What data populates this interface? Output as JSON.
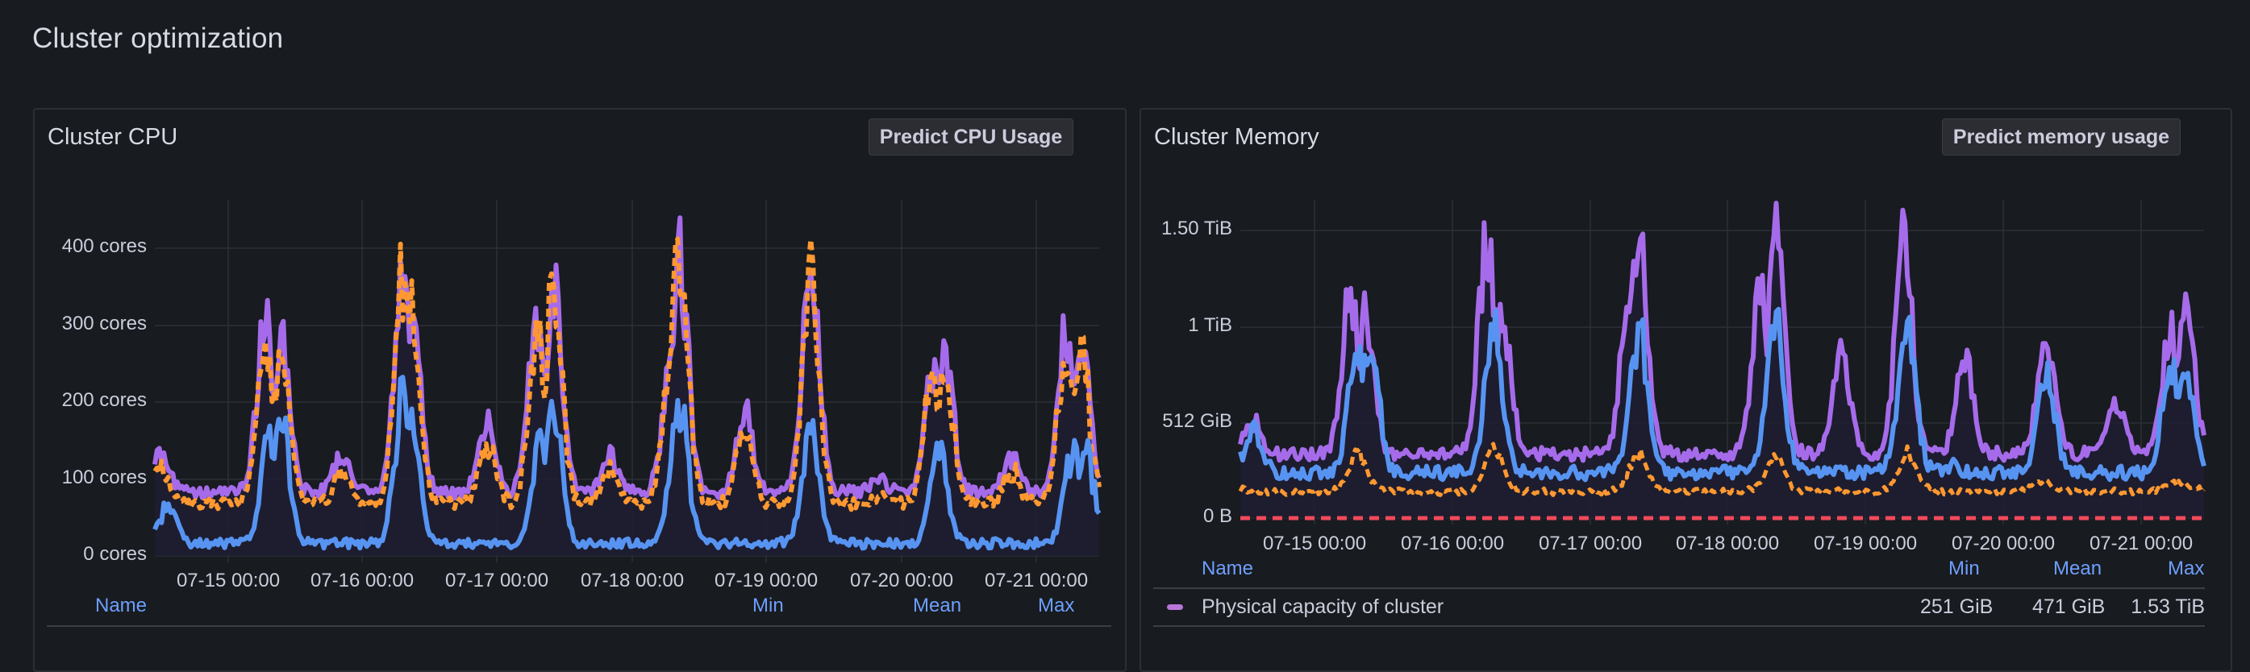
{
  "page": {
    "title": "Cluster optimization"
  },
  "panels": {
    "cpu": {
      "title": "Cluster CPU",
      "button_label": "Predict CPU Usage",
      "y_ticks": [
        "400 cores",
        "300 cores",
        "200 cores",
        "100 cores",
        "0 cores"
      ],
      "x_ticks": [
        "07-15 00:00",
        "07-16 00:00",
        "07-17 00:00",
        "07-18 00:00",
        "07-19 00:00",
        "07-20 00:00",
        "07-21 00:00"
      ],
      "legend_headers": {
        "name": "Name",
        "min": "Min",
        "mean": "Mean",
        "max": "Max"
      }
    },
    "memory": {
      "title": "Cluster Memory",
      "button_label": "Predict memory usage",
      "y_ticks": [
        "1.50 TiB",
        "1 TiB",
        "512 GiB",
        "0 B"
      ],
      "x_ticks": [
        "07-15 00:00",
        "07-16 00:00",
        "07-17 00:00",
        "07-18 00:00",
        "07-19 00:00",
        "07-20 00:00",
        "07-21 00:00"
      ],
      "legend_headers": {
        "name": "Name",
        "min": "Min",
        "mean": "Mean",
        "max": "Max"
      },
      "legend_rows": [
        {
          "name": "Physical capacity of cluster",
          "min": "251 GiB",
          "mean": "471 GiB",
          "max": "1.53 TiB",
          "color": "#b877d9"
        }
      ]
    }
  },
  "colors": {
    "purple": "#a66bea",
    "purple_light": "#e0a6f5",
    "orange": "#ff9830",
    "blue": "#5794f2",
    "red": "#f2495c",
    "legend_header": "#6e9fff"
  },
  "chart_data": [
    {
      "type": "line",
      "title": "Cluster CPU",
      "ylabel": "cores",
      "ylim": [
        0,
        430
      ],
      "y_ticks": [
        0,
        100,
        200,
        300,
        400
      ],
      "x_ticks": [
        "07-15 00:00",
        "07-16 00:00",
        "07-17 00:00",
        "07-18 00:00",
        "07-19 00:00",
        "07-20 00:00",
        "07-21 00:00"
      ],
      "x_range_days": [
        14.5,
        21.55
      ],
      "grid": true,
      "legend_position": "bottom-table",
      "series": [
        {
          "name": "capacity (purple, solid)",
          "style": "solid",
          "baseline": 75,
          "peaks": [
            [
              14.55,
              130
            ],
            [
              15.32,
              315
            ],
            [
              15.45,
              280
            ],
            [
              15.9,
              130
            ],
            [
              16.35,
              400
            ],
            [
              16.42,
              360
            ],
            [
              16.98,
              185
            ],
            [
              17.35,
              320
            ],
            [
              17.48,
              390
            ],
            [
              17.9,
              130
            ],
            [
              18.35,
              250
            ],
            [
              18.42,
              420
            ],
            [
              18.9,
              200
            ],
            [
              19.4,
              405
            ],
            [
              19.9,
              95
            ],
            [
              20.3,
              250
            ],
            [
              20.4,
              260
            ],
            [
              20.9,
              130
            ],
            [
              21.3,
              300
            ],
            [
              21.42,
              280
            ]
          ]
        },
        {
          "name": "requests (orange, dashed)",
          "style": "dashed",
          "baseline": 60,
          "peaks": [
            [
              14.55,
              115
            ],
            [
              15.32,
              290
            ],
            [
              15.45,
              265
            ],
            [
              15.9,
              110
            ],
            [
              16.35,
              385
            ],
            [
              16.42,
              340
            ],
            [
              16.98,
              160
            ],
            [
              17.35,
              300
            ],
            [
              17.48,
              380
            ],
            [
              17.9,
              115
            ],
            [
              18.35,
              235
            ],
            [
              18.42,
              430
            ],
            [
              18.9,
              180
            ],
            [
              19.4,
              400
            ],
            [
              19.9,
              70
            ],
            [
              20.3,
              235
            ],
            [
              20.4,
              240
            ],
            [
              20.9,
              110
            ],
            [
              21.3,
              290
            ],
            [
              21.42,
              270
            ]
          ]
        },
        {
          "name": "usage (blue, solid)",
          "style": "solid",
          "baseline": 10,
          "peaks": [
            [
              14.6,
              70
            ],
            [
              15.35,
              160
            ],
            [
              15.45,
              180
            ],
            [
              16.35,
              215
            ],
            [
              16.42,
              175
            ],
            [
              17.38,
              150
            ],
            [
              17.48,
              200
            ],
            [
              18.4,
              160
            ],
            [
              18.42,
              210
            ],
            [
              19.4,
              165
            ],
            [
              20.35,
              140
            ],
            [
              21.35,
              135
            ],
            [
              21.45,
              150
            ]
          ]
        }
      ]
    },
    {
      "type": "line",
      "title": "Cluster Memory",
      "ylabel": "bytes",
      "ylim": [
        0,
        1.6
      ],
      "y_ticks": [
        "0 B",
        "512 GiB",
        "1 TiB",
        "1.50 TiB"
      ],
      "y_tick_values_tib": [
        0,
        0.5,
        1.0,
        1.5
      ],
      "x_ticks": [
        "07-15 00:00",
        "07-16 00:00",
        "07-17 00:00",
        "07-18 00:00",
        "07-19 00:00",
        "07-20 00:00",
        "07-21 00:00"
      ],
      "x_range_days": [
        14.5,
        21.55
      ],
      "grid": true,
      "legend_position": "bottom-table",
      "series": [
        {
          "name": "Physical capacity of cluster",
          "style": "solid",
          "min_tib": 0.245,
          "mean_tib": 0.46,
          "max_tib": 1.53,
          "baseline": 0.3,
          "peaks": [
            [
              14.6,
              0.5
            ],
            [
              15.3,
              1.2
            ],
            [
              15.42,
              1.05
            ],
            [
              16.3,
              1.53
            ],
            [
              16.42,
              1.1
            ],
            [
              17.35,
              1.3
            ],
            [
              17.42,
              1.5
            ],
            [
              18.3,
              1.25
            ],
            [
              18.42,
              1.53
            ],
            [
              18.9,
              0.9
            ],
            [
              19.35,
              1.53
            ],
            [
              19.8,
              0.9
            ],
            [
              20.4,
              0.95
            ],
            [
              20.9,
              0.65
            ],
            [
              21.3,
              1.0
            ],
            [
              21.42,
              1.15
            ]
          ]
        },
        {
          "name": "used (blue, solid)",
          "style": "solid",
          "baseline": 0.2,
          "peaks": [
            [
              14.6,
              0.45
            ],
            [
              15.35,
              0.95
            ],
            [
              15.45,
              0.95
            ],
            [
              16.35,
              1.05
            ],
            [
              17.42,
              1.0
            ],
            [
              18.42,
              1.05
            ],
            [
              19.38,
              1.05
            ],
            [
              19.7,
              0.25
            ],
            [
              20.4,
              0.7
            ],
            [
              21.3,
              0.8
            ],
            [
              21.42,
              0.75
            ]
          ]
        },
        {
          "name": "requests (orange, dashed)",
          "style": "dashed",
          "baseline": 0.12,
          "peaks": [
            [
              15.35,
              0.3
            ],
            [
              16.35,
              0.35
            ],
            [
              17.42,
              0.3
            ],
            [
              18.42,
              0.3
            ],
            [
              19.38,
              0.3
            ]
          ]
        },
        {
          "name": "limit (red, dashed)",
          "style": "dashed",
          "baseline": 0.0,
          "peaks": []
        }
      ]
    }
  ]
}
